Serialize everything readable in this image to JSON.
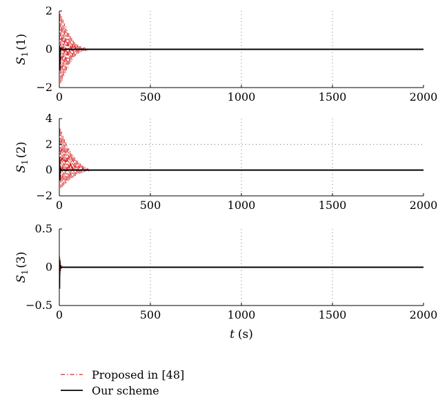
{
  "chart_data": [
    {
      "type": "line",
      "ylabel": "S1(1)",
      "ylabel_main": "S",
      "ylabel_sub": "1",
      "ylabel_arg": "(1)",
      "xlim": [
        0,
        2000
      ],
      "ylim": [
        -2,
        2
      ],
      "xticks": [
        "0",
        "500",
        "1000",
        "1500",
        "2000"
      ],
      "yticks": [
        "2",
        "0",
        "−2"
      ],
      "ytick_values": [
        2,
        0,
        -2
      ],
      "grid": true,
      "series": [
        {
          "name": "Proposed in [48]",
          "color": "#d62728",
          "style": "dash-dot",
          "x": [
            0,
            4,
            8,
            12,
            16,
            20,
            24,
            28,
            32,
            36,
            40,
            44,
            48,
            52,
            56,
            60,
            64,
            68,
            72,
            76,
            80,
            84,
            88,
            92,
            96,
            100,
            104,
            108,
            112,
            116,
            120,
            124,
            128,
            132,
            136,
            140,
            144,
            148,
            152,
            156,
            160,
            164,
            168,
            172,
            176,
            180,
            200,
            2000
          ],
          "y": [
            0,
            1.9,
            -1.8,
            1.75,
            -1.65,
            1.55,
            -1.45,
            1.35,
            -1.25,
            1.2,
            -1.1,
            1.0,
            -0.95,
            0.85,
            -0.8,
            0.72,
            -0.66,
            0.6,
            -0.55,
            0.5,
            -0.45,
            0.4,
            -0.36,
            0.32,
            -0.29,
            0.26,
            -0.23,
            0.2,
            -0.18,
            0.16,
            -0.14,
            0.12,
            -0.1,
            0.09,
            -0.08,
            0.07,
            -0.06,
            0.05,
            -0.04,
            0.03,
            -0.02,
            0.015,
            -0.01,
            0.008,
            -0.005,
            0.002,
            0,
            0
          ]
        },
        {
          "name": "Our scheme",
          "color": "#000000",
          "style": "solid",
          "x": [
            0,
            1,
            2,
            4,
            6,
            10,
            2000
          ],
          "y": [
            0,
            0.2,
            -1.1,
            -0.2,
            0.05,
            0,
            0
          ]
        }
      ]
    },
    {
      "type": "line",
      "ylabel": "S1(2)",
      "ylabel_main": "S",
      "ylabel_sub": "1",
      "ylabel_arg": "(2)",
      "xlim": [
        0,
        2000
      ],
      "ylim": [
        -2,
        4
      ],
      "xticks": [
        "0",
        "500",
        "1000",
        "1500",
        "2000"
      ],
      "yticks": [
        "4",
        "2",
        "0",
        "−2"
      ],
      "ytick_values": [
        4,
        2,
        0,
        -2
      ],
      "grid": true,
      "series": [
        {
          "name": "Proposed in [48]",
          "color": "#d62728",
          "style": "dash-dot",
          "x": [
            0,
            4,
            8,
            12,
            16,
            20,
            24,
            28,
            32,
            36,
            40,
            44,
            48,
            52,
            56,
            60,
            64,
            68,
            72,
            76,
            80,
            84,
            88,
            92,
            96,
            100,
            104,
            108,
            112,
            116,
            120,
            124,
            128,
            132,
            136,
            140,
            144,
            148,
            152,
            156,
            160,
            164,
            168,
            172,
            176,
            180,
            200,
            2000
          ],
          "y": [
            0,
            3.3,
            -1.4,
            3.0,
            -1.3,
            2.7,
            -1.2,
            2.4,
            -1.1,
            2.15,
            -1.0,
            1.9,
            -0.9,
            1.7,
            -0.8,
            1.5,
            -0.7,
            1.3,
            -0.6,
            1.15,
            -0.52,
            1.0,
            -0.45,
            0.85,
            -0.38,
            0.72,
            -0.32,
            0.6,
            -0.27,
            0.5,
            -0.22,
            0.4,
            -0.18,
            0.32,
            -0.14,
            0.25,
            -0.1,
            0.18,
            -0.07,
            0.12,
            -0.05,
            0.08,
            -0.03,
            0.04,
            -0.02,
            0.01,
            0,
            0
          ]
        },
        {
          "name": "Our scheme",
          "color": "#000000",
          "style": "solid",
          "x": [
            0,
            1,
            2,
            4,
            6,
            10,
            2000
          ],
          "y": [
            0,
            1.0,
            -0.8,
            0.2,
            -0.05,
            0,
            0
          ]
        }
      ]
    },
    {
      "type": "line",
      "ylabel": "S1(3)",
      "ylabel_main": "S",
      "ylabel_sub": "1",
      "ylabel_arg": "(3)",
      "xlim": [
        0,
        2000
      ],
      "ylim": [
        -0.5,
        0.5
      ],
      "xticks": [
        "0",
        "500",
        "1000",
        "1500",
        "2000"
      ],
      "yticks": [
        "0.5",
        "0",
        "−0.5"
      ],
      "ytick_values": [
        0.5,
        0,
        -0.5
      ],
      "xlabel_main": "t",
      "xlabel_unit": "(s)",
      "grid": true,
      "series": [
        {
          "name": "Proposed in [48]",
          "color": "#d62728",
          "style": "dash-dot",
          "x": [
            0,
            2,
            4,
            6,
            8,
            10,
            12,
            16,
            20,
            2000
          ],
          "y": [
            0,
            0.14,
            -0.1,
            0.08,
            -0.05,
            0.03,
            -0.02,
            0.01,
            0,
            0
          ]
        },
        {
          "name": "Our scheme",
          "color": "#000000",
          "style": "solid",
          "x": [
            0,
            1,
            2,
            3,
            5,
            8,
            2000
          ],
          "y": [
            0,
            -0.28,
            0.1,
            -0.05,
            0.02,
            0,
            0
          ]
        }
      ]
    }
  ],
  "legend": {
    "placement": "bottom-left",
    "entries": [
      {
        "label": "Proposed in [48]",
        "color": "#d62728",
        "style": "dash-dot"
      },
      {
        "label": "Our scheme",
        "color": "#000000",
        "style": "solid"
      }
    ]
  }
}
